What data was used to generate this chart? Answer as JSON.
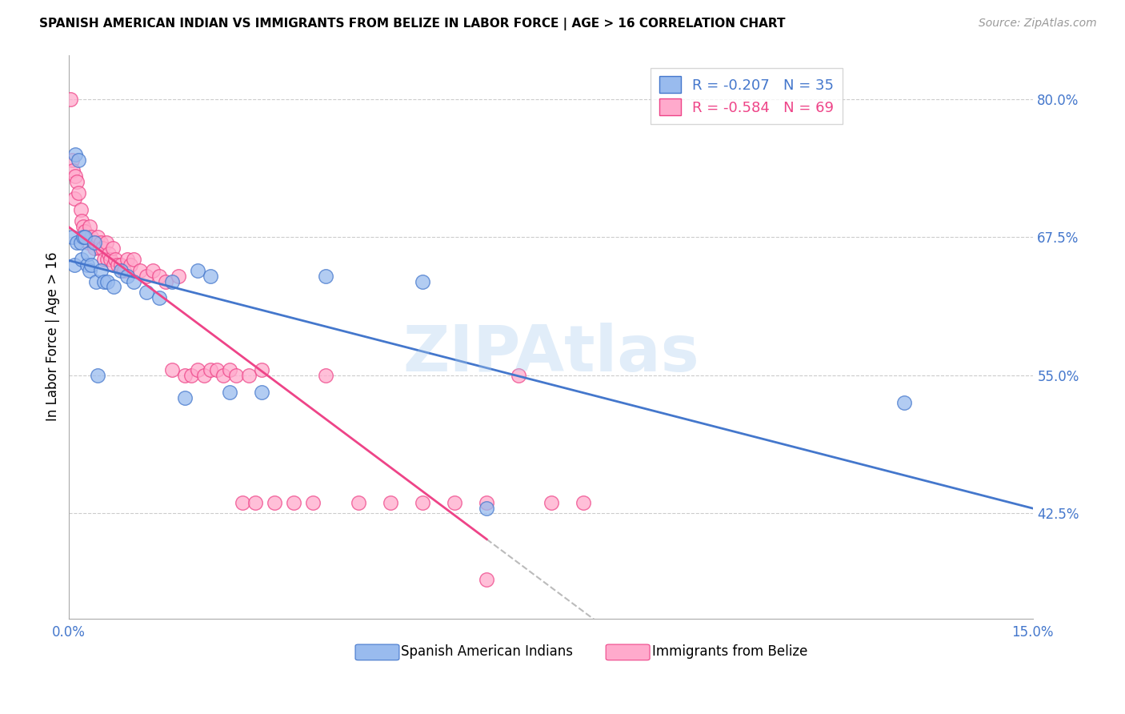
{
  "title": "SPANISH AMERICAN INDIAN VS IMMIGRANTS FROM BELIZE IN LABOR FORCE | AGE > 16 CORRELATION CHART",
  "source": "Source: ZipAtlas.com",
  "ylabel": "In Labor Force | Age > 16",
  "y_ticks": [
    42.5,
    55.0,
    67.5,
    80.0
  ],
  "y_tick_labels": [
    "42.5%",
    "55.0%",
    "67.5%",
    "80.0%"
  ],
  "xmin": 0.0,
  "xmax": 15.0,
  "ymin": 33.0,
  "ymax": 84.0,
  "blue_R": -0.207,
  "blue_N": 35,
  "pink_R": -0.584,
  "pink_N": 69,
  "blue_color": "#99BBEE",
  "pink_color": "#FFAACC",
  "blue_line_color": "#4477CC",
  "pink_line_color": "#EE4488",
  "dash_color": "#BBBBBB",
  "watermark": "ZIPAtlas",
  "legend_label_blue": "Spanish American Indians",
  "legend_label_pink": "Immigrants from Belize",
  "blue_scatter_x": [
    0.05,
    0.08,
    0.1,
    0.12,
    0.15,
    0.18,
    0.2,
    0.22,
    0.25,
    0.28,
    0.3,
    0.32,
    0.35,
    0.4,
    0.42,
    0.45,
    0.5,
    0.55,
    0.6,
    0.7,
    0.8,
    0.9,
    1.0,
    1.2,
    1.4,
    1.6,
    1.8,
    2.0,
    2.2,
    2.5,
    3.0,
    4.0,
    5.5,
    6.5,
    13.0
  ],
  "blue_scatter_y": [
    67.5,
    65.0,
    75.0,
    67.0,
    74.5,
    67.0,
    65.5,
    67.5,
    67.5,
    65.0,
    66.0,
    64.5,
    65.0,
    67.0,
    63.5,
    55.0,
    64.5,
    63.5,
    63.5,
    63.0,
    64.5,
    64.0,
    63.5,
    62.5,
    62.0,
    63.5,
    53.0,
    64.5,
    64.0,
    53.5,
    53.5,
    64.0,
    63.5,
    43.0,
    52.5
  ],
  "pink_scatter_x": [
    0.02,
    0.04,
    0.06,
    0.08,
    0.1,
    0.12,
    0.15,
    0.18,
    0.2,
    0.22,
    0.25,
    0.28,
    0.3,
    0.32,
    0.35,
    0.38,
    0.4,
    0.42,
    0.45,
    0.48,
    0.5,
    0.52,
    0.55,
    0.58,
    0.6,
    0.62,
    0.65,
    0.68,
    0.7,
    0.72,
    0.75,
    0.8,
    0.85,
    0.9,
    0.95,
    1.0,
    1.1,
    1.2,
    1.3,
    1.4,
    1.5,
    1.6,
    1.7,
    1.8,
    1.9,
    2.0,
    2.1,
    2.2,
    2.3,
    2.4,
    2.5,
    2.6,
    2.7,
    2.8,
    2.9,
    3.0,
    3.2,
    3.5,
    3.8,
    4.0,
    4.5,
    5.0,
    5.5,
    6.0,
    6.5,
    7.0,
    7.5,
    8.0,
    6.5
  ],
  "pink_scatter_y": [
    80.0,
    74.5,
    73.5,
    71.0,
    73.0,
    72.5,
    71.5,
    70.0,
    69.0,
    68.5,
    68.0,
    67.5,
    67.0,
    68.5,
    67.5,
    67.0,
    66.5,
    67.0,
    67.5,
    66.5,
    67.0,
    66.5,
    65.5,
    67.0,
    65.5,
    66.0,
    65.5,
    66.5,
    65.0,
    65.5,
    65.0,
    65.0,
    64.5,
    65.5,
    65.0,
    65.5,
    64.5,
    64.0,
    64.5,
    64.0,
    63.5,
    55.5,
    64.0,
    55.0,
    55.0,
    55.5,
    55.0,
    55.5,
    55.5,
    55.0,
    55.5,
    55.0,
    43.5,
    55.0,
    43.5,
    55.5,
    43.5,
    43.5,
    43.5,
    55.0,
    43.5,
    43.5,
    43.5,
    43.5,
    43.5,
    55.0,
    43.5,
    43.5,
    36.5
  ],
  "pink_solid_end_x": 6.5,
  "grid_color": "#CCCCCC",
  "spine_color": "#AAAAAA",
  "tick_label_color": "#4477CC",
  "title_fontsize": 11,
  "source_fontsize": 10,
  "tick_fontsize": 12,
  "ylabel_fontsize": 12
}
